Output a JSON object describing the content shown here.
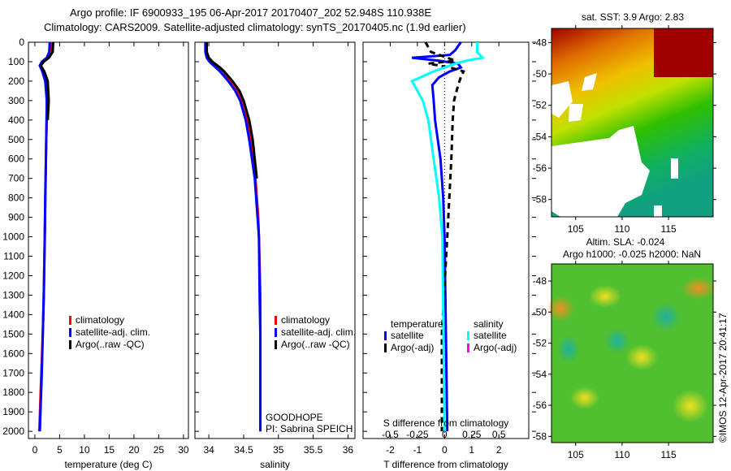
{
  "title": {
    "line1": "Argo profile: IF 6900933_195 06-Apr-2017 20170407_202 52.948S 110.938E",
    "line2": "Climatology: CARS2009. Satellite-adjusted climatology: synTS_20170405.nc (1.9d earlier)"
  },
  "colors": {
    "climatology": "#ff0000",
    "satellite": "#0000ff",
    "argo": "#000000",
    "sal_satellite": "#00ffff",
    "sal_argo": "#ff00ff"
  },
  "copyright": "©IMOS 12-Apr-2017 20:41:17",
  "chart_data": [
    {
      "type": "line",
      "name": "temperature-profile",
      "xlabel": "temperature (deg C)",
      "xlim": [
        -1.3,
        31
      ],
      "ylim": [
        0,
        2037
      ],
      "y_reversed": true,
      "xticks": [
        0,
        5,
        10,
        15,
        20,
        25,
        30
      ],
      "yticks": [
        0,
        100,
        200,
        300,
        400,
        500,
        600,
        700,
        800,
        900,
        1000,
        1100,
        1200,
        1300,
        1400,
        1500,
        1600,
        1700,
        1800,
        1900,
        2000
      ],
      "legend": [
        "climatology",
        "satellite-adj. clim.",
        "Argo(..raw -QC)"
      ],
      "series": [
        {
          "name": "climatology",
          "color": "#ff0000",
          "depth": [
            0,
            50,
            80,
            100,
            120,
            150,
            200,
            300,
            500,
            800,
            1000,
            1300,
            1500,
            1700,
            2000
          ],
          "values": [
            3.4,
            3.3,
            2.5,
            1.5,
            1.0,
            1.6,
            2.2,
            2.5,
            2.3,
            2.1,
            2.0,
            1.8,
            1.6,
            1.3,
            0.9
          ]
        },
        {
          "name": "satellite-adj. clim.",
          "color": "#0000ff",
          "depth": [
            0,
            50,
            80,
            100,
            120,
            150,
            200,
            300,
            500,
            800,
            1000,
            1300,
            1500,
            1700,
            2000
          ],
          "values": [
            3.0,
            2.9,
            2.4,
            1.4,
            1.0,
            1.5,
            2.1,
            2.4,
            2.3,
            2.1,
            2.0,
            1.8,
            1.6,
            1.4,
            1.0
          ]
        },
        {
          "name": "Argo(..raw -QC)",
          "color": "#000000",
          "depth": [
            0,
            50,
            80,
            100,
            120,
            150,
            200,
            300,
            400
          ],
          "values": [
            3.7,
            3.6,
            2.8,
            1.8,
            1.2,
            1.9,
            2.6,
            2.8,
            2.6
          ]
        }
      ]
    },
    {
      "type": "line",
      "name": "salinity-profile",
      "xlabel": "salinity",
      "xlim": [
        33.8,
        36.1
      ],
      "ylim": [
        0,
        2037
      ],
      "y_reversed": true,
      "xticks": [
        34,
        34.5,
        35,
        35.5,
        36
      ],
      "xticklabels": [
        "34",
        "34.5",
        "35",
        "35.5",
        "36"
      ],
      "legend": [
        "climatology",
        "satellite-adj. clim.",
        "Argo(..raw -QC)"
      ],
      "annotation": [
        "GOODHOPE",
        "PI: Sabrina SPEICH"
      ],
      "series": [
        {
          "name": "climatology",
          "color": "#ff0000",
          "depth": [
            0,
            50,
            80,
            100,
            130,
            150,
            200,
            250,
            300,
            400,
            500,
            700,
            900,
            1000,
            1300,
            1500,
            2000
          ],
          "values": [
            33.96,
            33.96,
            33.98,
            34.02,
            34.12,
            34.18,
            34.3,
            34.4,
            34.47,
            34.55,
            34.6,
            34.67,
            34.71,
            34.72,
            34.74,
            34.74,
            34.74
          ]
        },
        {
          "name": "satellite-adj. clim.",
          "color": "#0000ff",
          "depth": [
            0,
            50,
            80,
            100,
            130,
            150,
            200,
            250,
            300,
            400,
            500,
            700,
            900,
            1000,
            1300,
            1500,
            2000
          ],
          "values": [
            33.95,
            33.95,
            33.97,
            34.01,
            34.1,
            34.16,
            34.28,
            34.38,
            34.45,
            34.53,
            34.58,
            34.66,
            34.7,
            34.72,
            34.73,
            34.74,
            34.74
          ]
        },
        {
          "name": "Argo(..raw -QC)",
          "color": "#000000",
          "depth": [
            0,
            50,
            80,
            100,
            130,
            150,
            200,
            250,
            300,
            400,
            500,
            700
          ],
          "values": [
            33.97,
            33.97,
            34.0,
            34.05,
            34.16,
            34.22,
            34.34,
            34.44,
            34.5,
            34.58,
            34.63,
            34.69
          ]
        }
      ]
    },
    {
      "type": "line",
      "name": "difference-profile",
      "xlabel": "T difference from climatology",
      "xlabel_top": "S difference from climatology",
      "xlim": [
        -3,
        3.1
      ],
      "ylim": [
        0,
        2037
      ],
      "y_reversed": true,
      "xticks": [
        -2,
        -1,
        0,
        1,
        2
      ],
      "s_xticks": [
        -0.5,
        -0.25,
        0,
        0.25,
        0.5
      ],
      "s_xticklabels": [
        "-0.5",
        "-0.25",
        "0",
        "0.25",
        "0.5"
      ],
      "legend_temperature_title": "temperature",
      "legend_salinity_title": "salinity",
      "legend_temperature": [
        "satellite",
        "Argo(-adj)"
      ],
      "legend_salinity": [
        "satellite",
        "Argo(-adj)"
      ],
      "series": [
        {
          "name": "T satellite",
          "color": "#0000ff",
          "depth": [
            0,
            40,
            65,
            80,
            95,
            110,
            130,
            150,
            180,
            220,
            300,
            400,
            600,
            800,
            1000,
            1500,
            2000
          ],
          "values": [
            0.6,
            0.4,
            0.2,
            -1.2,
            -0.2,
            0.5,
            0.6,
            0.2,
            -0.2,
            -0.45,
            -0.4,
            -0.35,
            -0.15,
            -0.05,
            0,
            0.05,
            0.1
          ]
        },
        {
          "name": "T Argo(-adj)",
          "color": "#000000",
          "dashed": true,
          "depth": [
            0,
            50,
            80,
            95,
            110,
            130,
            150,
            180,
            220,
            300,
            400,
            600,
            1000,
            1500,
            1800,
            2000
          ],
          "values": [
            -0.7,
            -0.5,
            0.1,
            0.4,
            -0.6,
            0.2,
            0.7,
            0.6,
            0.5,
            0.35,
            0.3,
            0.25,
            0.1,
            -0.1,
            -0.1,
            -0.1
          ]
        },
        {
          "name": "S satellite",
          "color": "#00ffff",
          "depth": [
            0,
            50,
            80,
            95,
            110,
            150,
            200,
            300,
            400,
            600,
            800,
            1000,
            2000
          ],
          "values": [
            0.3,
            0.3,
            0.35,
            0.2,
            0.1,
            -0.1,
            -0.3,
            -0.2,
            -0.15,
            -0.1,
            -0.05,
            -0.02,
            0
          ]
        }
      ]
    },
    {
      "type": "heatmap",
      "name": "sst-map",
      "title": "sat. SST: 3.9 Argo: 2.83",
      "xlim": [
        102.4,
        119.8
      ],
      "ylim": [
        -59.1,
        -47.1
      ],
      "xticks": [
        105,
        110,
        115
      ],
      "yticks": [
        -48,
        -50,
        -52,
        -54,
        -56,
        -58
      ]
    },
    {
      "type": "heatmap",
      "name": "sla-map",
      "title": [
        "Altim. SLA: -0.024",
        "Argo h1000: -0.025 h2000: NaN"
      ],
      "xlim": [
        102.4,
        119.8
      ],
      "ylim": [
        -58.4,
        -46.9
      ],
      "xticks": [
        105,
        110,
        115
      ],
      "yticks": [
        -48,
        -50,
        -52,
        -54,
        -56,
        -58
      ]
    }
  ]
}
